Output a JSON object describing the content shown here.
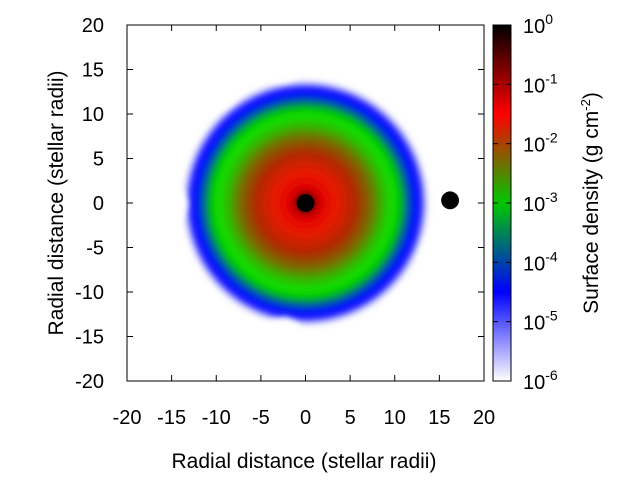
{
  "chart_data": {
    "type": "heatmap",
    "title": "",
    "xlabel": "Radial distance (stellar radii)",
    "ylabel": "Radial distance (stellar radii)",
    "xlim": [
      -20,
      20
    ],
    "ylim": [
      -20,
      20
    ],
    "x_ticks": [
      "-20",
      "-15",
      "-10",
      "-5",
      "0",
      "5",
      "10",
      "15",
      "20"
    ],
    "y_ticks": [
      "20",
      "15",
      "10",
      "5",
      "0",
      "-5",
      "-10",
      "-15",
      "-20"
    ],
    "colorbar": {
      "label_main": "Surface density (g cm",
      "label_exp": "-2",
      "label_tail": ")",
      "scale": "log",
      "range": [
        1e-06,
        1
      ],
      "ticks": [
        {
          "base": "10",
          "exp": "0"
        },
        {
          "base": "10",
          "exp": "-1"
        },
        {
          "base": "10",
          "exp": "-2"
        },
        {
          "base": "10",
          "exp": "-3"
        },
        {
          "base": "10",
          "exp": "-4"
        },
        {
          "base": "10",
          "exp": "-5"
        },
        {
          "base": "10",
          "exp": "-6"
        }
      ],
      "colors": [
        "#ffffff",
        "#0000ff",
        "#00c800",
        "#ff0000",
        "#000000"
      ]
    },
    "objects": [
      {
        "name": "central-star",
        "x": 0,
        "y": 0,
        "radius": 1.0
      },
      {
        "name": "companion",
        "x": 16.2,
        "y": 0.3,
        "radius": 1.0
      }
    ],
    "disk": {
      "center": [
        0,
        0
      ],
      "outer_radius": 14,
      "grid": false
    }
  }
}
